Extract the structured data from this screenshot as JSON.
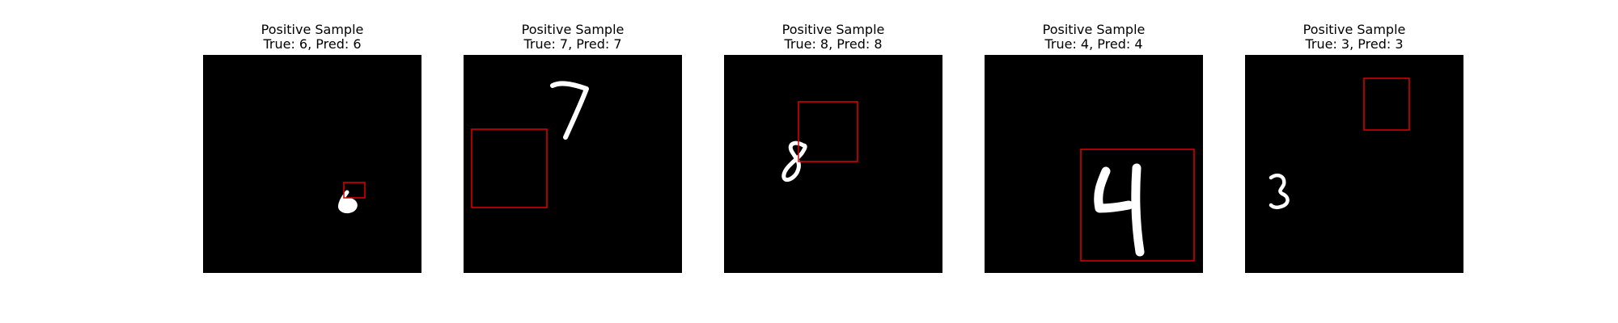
{
  "panels": [
    {
      "heading": "Positive Sample",
      "caption": "True: 6, Pred: 6",
      "digit": "6",
      "box_color": "#e00000"
    },
    {
      "heading": "Positive Sample",
      "caption": "True: 7, Pred: 7",
      "digit": "7",
      "box_color": "#e00000"
    },
    {
      "heading": "Positive Sample",
      "caption": "True: 8, Pred: 8",
      "digit": "8",
      "box_color": "#e00000"
    },
    {
      "heading": "Positive Sample",
      "caption": "True: 4, Pred: 4",
      "digit": "4",
      "box_color": "#e00000"
    },
    {
      "heading": "Positive Sample",
      "caption": "True: 3, Pred: 3",
      "digit": "3",
      "box_color": "#e00000"
    }
  ]
}
